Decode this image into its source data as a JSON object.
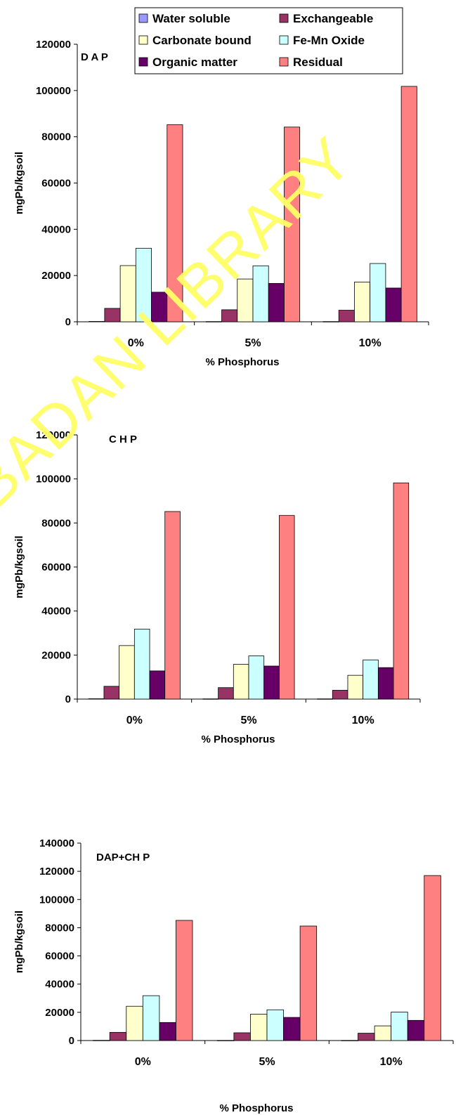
{
  "watermark": "BADAN LIBRARY",
  "legend": [
    {
      "name": "Water soluble",
      "color": "#9999ff"
    },
    {
      "name": "Exchangeable",
      "color": "#993366"
    },
    {
      "name": "Carbonate bound",
      "color": "#ffffcc"
    },
    {
      "name": "Fe-Mn Oxide",
      "color": "#ccffff"
    },
    {
      "name": "Organic matter",
      "color": "#660066"
    },
    {
      "name": "Residual",
      "color": "#ff8080"
    }
  ],
  "chart_data": [
    {
      "type": "bar",
      "title": "D A P",
      "xlabel": "% Phosphorus",
      "ylabel": "mgPb/kgsoil",
      "ylim": [
        0,
        120000
      ],
      "yticks": [
        "0",
        "20000",
        "40000",
        "60000",
        "80000",
        "100000",
        "120000"
      ],
      "categories": [
        "0%",
        "5%",
        "10%"
      ],
      "series": [
        {
          "name": "Water soluble",
          "values": [
            150,
            100,
            100
          ]
        },
        {
          "name": "Exchangeable",
          "values": [
            5800,
            5200,
            5000
          ]
        },
        {
          "name": "Carbonate bound",
          "values": [
            24300,
            18500,
            17200
          ]
        },
        {
          "name": "Fe-Mn Oxide",
          "values": [
            31800,
            24200,
            25200
          ]
        },
        {
          "name": "Organic matter",
          "values": [
            12800,
            16600,
            14600
          ]
        },
        {
          "name": "Residual",
          "values": [
            85200,
            84200,
            101800
          ]
        }
      ]
    },
    {
      "type": "bar",
      "title": "C H P",
      "xlabel": "% Phosphorus",
      "ylabel": "mgPb/kgsoil",
      "ylim": [
        0,
        120000
      ],
      "yticks": [
        "0",
        "20000",
        "40000",
        "60000",
        "80000",
        "100000",
        "120000"
      ],
      "categories": [
        "0%",
        "5%",
        "10%"
      ],
      "series": [
        {
          "name": "Water soluble",
          "values": [
            150,
            100,
            100
          ]
        },
        {
          "name": "Exchangeable",
          "values": [
            5800,
            5200,
            4000
          ]
        },
        {
          "name": "Carbonate bound",
          "values": [
            24300,
            15800,
            10800
          ]
        },
        {
          "name": "Fe-Mn Oxide",
          "values": [
            31800,
            19600,
            17800
          ]
        },
        {
          "name": "Organic matter",
          "values": [
            12800,
            15000,
            14300
          ]
        },
        {
          "name": "Residual",
          "values": [
            85200,
            83400,
            98200
          ]
        }
      ]
    },
    {
      "type": "bar",
      "title": "DAP+CH P",
      "xlabel": "% Phosphorus",
      "ylabel": "mgPb/kgsoil",
      "ylim": [
        0,
        140000
      ],
      "yticks": [
        "0",
        "20000",
        "40000",
        "60000",
        "80000",
        "100000",
        "120000",
        "140000"
      ],
      "categories": [
        "0%",
        "5%",
        "10%"
      ],
      "series": [
        {
          "name": "Water soluble",
          "values": [
            150,
            100,
            100
          ]
        },
        {
          "name": "Exchangeable",
          "values": [
            5800,
            5500,
            5200
          ]
        },
        {
          "name": "Carbonate bound",
          "values": [
            24300,
            18700,
            10400
          ]
        },
        {
          "name": "Fe-Mn Oxide",
          "values": [
            31800,
            21800,
            20200
          ]
        },
        {
          "name": "Organic matter",
          "values": [
            12800,
            16400,
            14300
          ]
        },
        {
          "name": "Residual",
          "values": [
            85200,
            81200,
            117000
          ]
        }
      ]
    }
  ]
}
